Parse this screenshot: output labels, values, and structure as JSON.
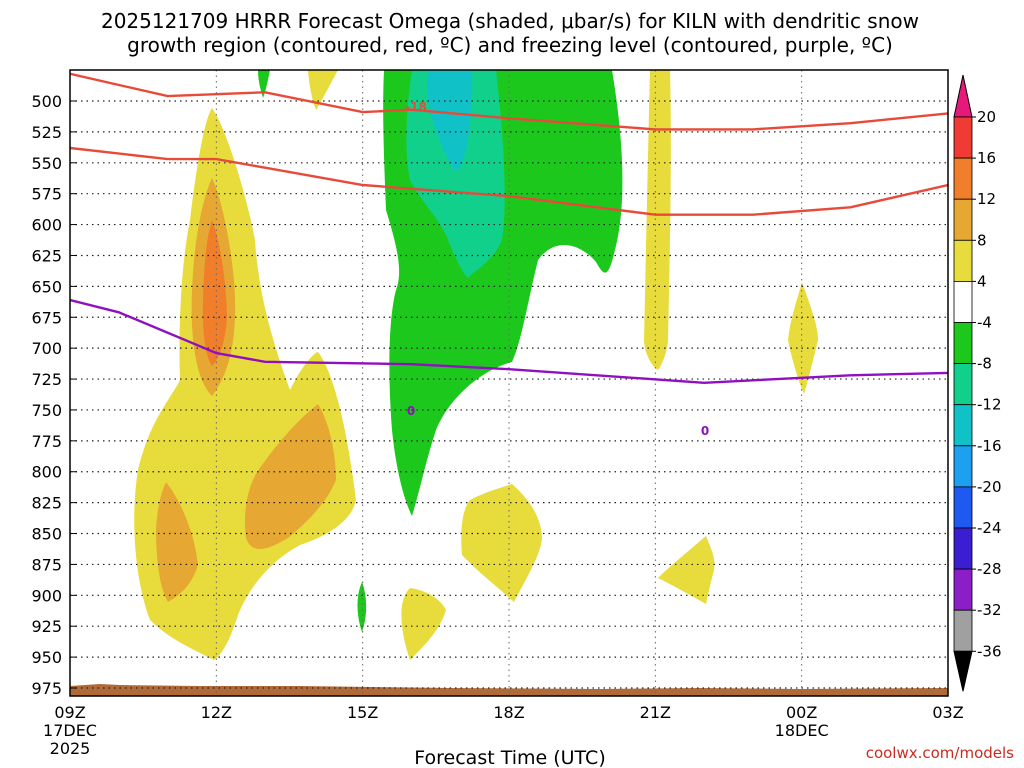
{
  "chart_data": {
    "type": "heatmap",
    "title_line1": "2025121709 HRRR Forecast Omega (shaded, μbar/s) for KILN with dendritic snow",
    "title_line2": "growth region (contoured, red, ºC) and freezing level (contoured, purple, ºC)",
    "xlabel": "Forecast Time (UTC)",
    "credit": "coolwx.com/models",
    "y_ticks": [
      500,
      525,
      550,
      575,
      600,
      625,
      650,
      675,
      700,
      725,
      750,
      775,
      800,
      825,
      850,
      875,
      900,
      925,
      950,
      975
    ],
    "x_ticks": [
      {
        "hour": 0,
        "label": "09Z",
        "sub1": "17DEC",
        "sub2": "2025"
      },
      {
        "hour": 3,
        "label": "12Z"
      },
      {
        "hour": 6,
        "label": "15Z"
      },
      {
        "hour": 9,
        "label": "18Z"
      },
      {
        "hour": 12,
        "label": "21Z"
      },
      {
        "hour": 15,
        "label": "00Z",
        "sub1": "18DEC"
      },
      {
        "hour": 18,
        "label": "03Z"
      }
    ],
    "colorbar": {
      "labels": [
        "20",
        "16",
        "12",
        "8",
        "4",
        "-4",
        "-8",
        "-12",
        "-16",
        "-20",
        "-24",
        "-28",
        "-32",
        "-36"
      ],
      "colors": [
        "#f03a34",
        "#f07e2a",
        "#e6a832",
        "#e8dc3c",
        "#ffffff",
        "#1dc81d",
        "#10d08c",
        "#10c2c8",
        "#1ea0f0",
        "#1e5af0",
        "#3c1ed2",
        "#8c1ec8",
        "#a0a0a0"
      ],
      "top_color": "#e6197a",
      "bottom_color": "#000000"
    },
    "contour_labels": {
      "dgz_upper": "-18",
      "freezing_1": "0",
      "freezing_2": "0"
    },
    "dgz_upper_line": {
      "hours": [
        0,
        2,
        4,
        6,
        7,
        9,
        12,
        14,
        16,
        18
      ],
      "pressures": [
        478,
        496,
        493,
        509,
        507,
        514,
        523,
        523,
        518,
        510
      ]
    },
    "dgz_lower_line": {
      "hours": [
        0,
        2,
        3,
        4,
        6,
        9,
        12,
        14,
        16,
        18
      ],
      "pressures": [
        538,
        547,
        547,
        554,
        568,
        577,
        592,
        592,
        586,
        568
      ]
    },
    "freezing_line": {
      "hours": [
        0,
        1,
        3,
        4,
        7,
        9,
        13,
        15,
        16,
        18
      ],
      "pressures": [
        661,
        671,
        704,
        711,
        713,
        717,
        728,
        724,
        722,
        720
      ]
    }
  }
}
